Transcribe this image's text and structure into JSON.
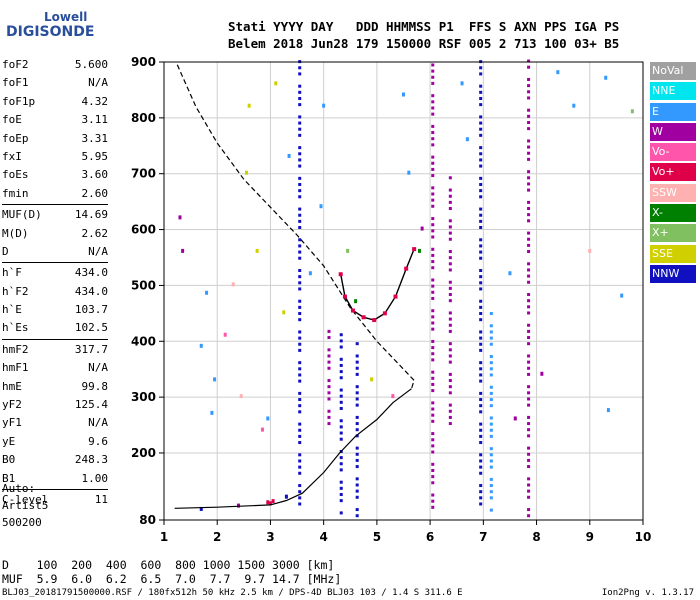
{
  "logo": {
    "line1": "Lowell",
    "line2": "DIGISONDE"
  },
  "header": {
    "line1": "Stati YYYY DAY   DDD HHMMSS P1  FFS S AXN PPS IGA PS",
    "line2": "Belem 2018 Jun28 179 150000 RSF 005 2 713 100 03+ B5"
  },
  "params": [
    {
      "label": "foF2",
      "value": "5.600"
    },
    {
      "label": "foF1",
      "value": "N/A"
    },
    {
      "label": "foF1p",
      "value": "4.32"
    },
    {
      "label": "foE",
      "value": "3.11"
    },
    {
      "label": "foEp",
      "value": "3.31"
    },
    {
      "label": "fxI",
      "value": "5.95"
    },
    {
      "label": "foEs",
      "value": "3.60"
    },
    {
      "label": "fmin",
      "value": "2.60"
    },
    {
      "sep": true
    },
    {
      "label": "MUF(D)",
      "value": "14.69"
    },
    {
      "label": "M(D)",
      "value": "2.62"
    },
    {
      "label": "D",
      "value": "N/A"
    },
    {
      "sep": true
    },
    {
      "label": "h`F",
      "value": "434.0"
    },
    {
      "label": "h`F2",
      "value": "434.0"
    },
    {
      "label": "h`E",
      "value": "103.7"
    },
    {
      "label": "h`Es",
      "value": "102.5"
    },
    {
      "sep": true
    },
    {
      "label": "hmF2",
      "value": "317.7"
    },
    {
      "label": "hmF1",
      "value": "N/A"
    },
    {
      "label": "hmE",
      "value": "99.8"
    },
    {
      "label": "yF2",
      "value": "125.4"
    },
    {
      "label": "yF1",
      "value": "N/A"
    },
    {
      "label": "yE",
      "value": "9.6"
    },
    {
      "label": "B0",
      "value": "248.3"
    },
    {
      "label": "B1",
      "value": "1.00"
    },
    {
      "sep": true
    },
    {
      "label": "C-level",
      "value": "11"
    }
  ],
  "auto": {
    "line1": "Auto:",
    "line2": "Artist5",
    "line3": "500200"
  },
  "legend": [
    {
      "label": "NoVal",
      "color": "#a0a0a0"
    },
    {
      "label": "NNE",
      "color": "#00e5ee"
    },
    {
      "label": "E",
      "color": "#3399ff"
    },
    {
      "label": "W",
      "color": "#a000a0"
    },
    {
      "label": "Vo-",
      "color": "#ff55aa"
    },
    {
      "label": "Vo+",
      "color": "#e0004a"
    },
    {
      "label": "SSW",
      "color": "#ffb0b0"
    },
    {
      "label": "X-",
      "color": "#008000"
    },
    {
      "label": "X+",
      "color": "#80c060"
    },
    {
      "label": "SSE",
      "color": "#d0d000"
    },
    {
      "label": "NNW",
      "color": "#1010c0"
    }
  ],
  "muf_table": {
    "line1": "D    100  200  400  600  800 1000 1500 3000 [km]",
    "line2": "MUF  5.9  6.0  6.2  6.5  7.0  7.7  9.7 14.7 [MHz]"
  },
  "footer": "BLJ03_20181791500000.RSF / 180fx512h 50 kHz 2.5 km / DPS-4D BLJ03 103 / 1.4 S 311.6 E",
  "version": "Ion2Png v. 1.3.17",
  "chart_data": {
    "type": "scatter",
    "xlim": [
      1,
      10
    ],
    "ylim": [
      80,
      900
    ],
    "x_ticks": [
      "1",
      "2",
      "3",
      "4",
      "5",
      "6",
      "7",
      "8",
      "9",
      "10"
    ],
    "y_ticks": [
      "80",
      "200",
      "300",
      "400",
      "500",
      "600",
      "700",
      "800",
      "900"
    ],
    "y_tick_values": [
      80,
      200,
      300,
      400,
      500,
      600,
      700,
      800,
      900
    ],
    "grid": true,
    "profile_dashed": [
      [
        1.25,
        895
      ],
      [
        1.6,
        820
      ],
      [
        2.0,
        755
      ],
      [
        2.5,
        690
      ],
      [
        3.0,
        640
      ],
      [
        3.5,
        590
      ],
      [
        4.0,
        535
      ],
      [
        4.5,
        460
      ],
      [
        5.0,
        400
      ],
      [
        5.4,
        360
      ],
      [
        5.7,
        330
      ],
      [
        5.65,
        315
      ]
    ],
    "profile_solid": [
      [
        5.65,
        315
      ],
      [
        5.3,
        290
      ],
      [
        5.0,
        260
      ],
      [
        4.6,
        230
      ],
      [
        4.3,
        200
      ],
      [
        4.0,
        165
      ],
      [
        3.6,
        128
      ],
      [
        3.3,
        115
      ],
      [
        3.0,
        107
      ],
      [
        2.0,
        103
      ],
      [
        1.2,
        101
      ]
    ],
    "trace_curve": [
      [
        4.32,
        520
      ],
      [
        4.4,
        480
      ],
      [
        4.55,
        455
      ],
      [
        4.75,
        443
      ],
      [
        4.95,
        438
      ],
      [
        5.15,
        450
      ],
      [
        5.35,
        480
      ],
      [
        5.55,
        530
      ],
      [
        5.7,
        565
      ]
    ],
    "vertical_bands": [
      {
        "x": 3.55,
        "y0": 95,
        "y1": 900,
        "color": "#1010c0"
      },
      {
        "x": 4.33,
        "y0": 90,
        "y1": 420,
        "color": "#1010c0"
      },
      {
        "x": 4.63,
        "y0": 85,
        "y1": 400,
        "color": "#1010c0"
      },
      {
        "x": 6.05,
        "y0": 100,
        "y1": 900,
        "color": "#a000a0"
      },
      {
        "x": 6.38,
        "y0": 250,
        "y1": 700,
        "color": "#a000a0"
      },
      {
        "x": 6.95,
        "y0": 95,
        "y1": 900,
        "color": "#1010c0"
      },
      {
        "x": 7.15,
        "y0": 95,
        "y1": 450,
        "color": "#3399ff"
      },
      {
        "x": 7.85,
        "y0": 85,
        "y1": 900,
        "color": "#a000a0"
      },
      {
        "x": 4.1,
        "y0": 250,
        "y1": 420,
        "color": "#a000a0"
      }
    ],
    "scatter_points": [
      {
        "x": 1.3,
        "y": 620,
        "c": "#a000a0"
      },
      {
        "x": 1.35,
        "y": 560,
        "c": "#a000a0"
      },
      {
        "x": 1.7,
        "y": 390,
        "c": "#3399ff"
      },
      {
        "x": 1.8,
        "y": 485,
        "c": "#3399ff"
      },
      {
        "x": 1.9,
        "y": 270,
        "c": "#3399ff"
      },
      {
        "x": 1.95,
        "y": 330,
        "c": "#3399ff"
      },
      {
        "x": 2.15,
        "y": 410,
        "c": "#ff55aa"
      },
      {
        "x": 2.3,
        "y": 500,
        "c": "#ffb0b0"
      },
      {
        "x": 2.45,
        "y": 300,
        "c": "#ffb0b0"
      },
      {
        "x": 2.55,
        "y": 700,
        "c": "#d0d000"
      },
      {
        "x": 2.6,
        "y": 820,
        "c": "#d0d000"
      },
      {
        "x": 2.75,
        "y": 560,
        "c": "#d0d000"
      },
      {
        "x": 2.85,
        "y": 240,
        "c": "#ff55aa"
      },
      {
        "x": 2.95,
        "y": 260,
        "c": "#3399ff"
      },
      {
        "x": 3.1,
        "y": 860,
        "c": "#d0d000"
      },
      {
        "x": 3.25,
        "y": 450,
        "c": "#d0d000"
      },
      {
        "x": 3.35,
        "y": 730,
        "c": "#3399ff"
      },
      {
        "x": 3.75,
        "y": 520,
        "c": "#3399ff"
      },
      {
        "x": 3.95,
        "y": 640,
        "c": "#3399ff"
      },
      {
        "x": 4.0,
        "y": 820,
        "c": "#3399ff"
      },
      {
        "x": 4.45,
        "y": 560,
        "c": "#80c060"
      },
      {
        "x": 4.6,
        "y": 470,
        "c": "#008000"
      },
      {
        "x": 4.9,
        "y": 330,
        "c": "#d0d000"
      },
      {
        "x": 5.3,
        "y": 300,
        "c": "#ff55aa"
      },
      {
        "x": 5.5,
        "y": 840,
        "c": "#3399ff"
      },
      {
        "x": 5.6,
        "y": 700,
        "c": "#3399ff"
      },
      {
        "x": 5.8,
        "y": 560,
        "c": "#008000"
      },
      {
        "x": 5.85,
        "y": 600,
        "c": "#a000a0"
      },
      {
        "x": 6.6,
        "y": 860,
        "c": "#3399ff"
      },
      {
        "x": 6.7,
        "y": 760,
        "c": "#3399ff"
      },
      {
        "x": 7.5,
        "y": 520,
        "c": "#3399ff"
      },
      {
        "x": 7.6,
        "y": 260,
        "c": "#a000a0"
      },
      {
        "x": 8.1,
        "y": 340,
        "c": "#a000a0"
      },
      {
        "x": 8.4,
        "y": 880,
        "c": "#3399ff"
      },
      {
        "x": 8.7,
        "y": 820,
        "c": "#3399ff"
      },
      {
        "x": 9.0,
        "y": 560,
        "c": "#ffb0b0"
      },
      {
        "x": 9.3,
        "y": 870,
        "c": "#3399ff"
      },
      {
        "x": 9.35,
        "y": 275,
        "c": "#3399ff"
      },
      {
        "x": 9.6,
        "y": 480,
        "c": "#3399ff"
      },
      {
        "x": 9.8,
        "y": 810,
        "c": "#80c060"
      },
      {
        "x": 3.0,
        "y": 108,
        "c": "#e0004a"
      },
      {
        "x": 2.95,
        "y": 110,
        "c": "#e0004a"
      },
      {
        "x": 3.05,
        "y": 112,
        "c": "#e0004a"
      },
      {
        "x": 2.4,
        "y": 104,
        "c": "#a000a0"
      },
      {
        "x": 1.7,
        "y": 98,
        "c": "#1010c0"
      },
      {
        "x": 3.3,
        "y": 120,
        "c": "#1010c0"
      }
    ]
  }
}
